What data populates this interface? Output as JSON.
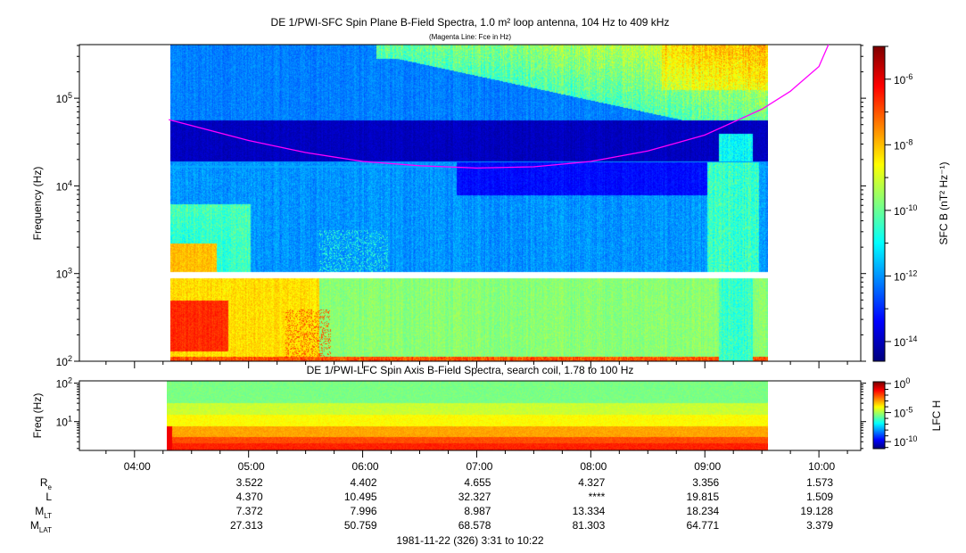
{
  "chart_data": [
    {
      "type": "heatmap",
      "title": "DE 1/PWI-SFC  Spin Plane B-Field Spectra, 1.0 m² loop antenna, 104 Hz to 409 kHz",
      "subtitle": "(Magenta Line: Fce in Hz)",
      "ylabel": "Frequency (Hz)",
      "yscale": "log",
      "ylim": [
        100,
        409000
      ],
      "yticks": [
        {
          "base": "10",
          "exp": "2"
        },
        {
          "base": "10",
          "exp": "3"
        },
        {
          "base": "10",
          "exp": "4"
        },
        {
          "base": "10",
          "exp": "5"
        }
      ],
      "ytick_values": [
        100,
        1000,
        10000,
        100000
      ],
      "xlim": [
        "03:31",
        "10:22"
      ],
      "data_time_range": [
        "04:18",
        "09:32"
      ],
      "data_gap_hz": [
        900,
        1050
      ],
      "colorbar": {
        "label": "SFC B (nT² Hz⁻¹)",
        "scale": "log",
        "range_exp": [
          -14.6,
          -5.0
        ],
        "ticks": [
          {
            "base": "10",
            "exp": "-6"
          },
          {
            "base": "10",
            "exp": "-8"
          },
          {
            "base": "10",
            "exp": "-10"
          },
          {
            "base": "10",
            "exp": "-12"
          },
          {
            "base": "10",
            "exp": "-14"
          }
        ],
        "tick_exps": [
          -6,
          -8,
          -10,
          -12,
          -14
        ],
        "colormap": "jet"
      },
      "fce_line": {
        "color": "#ff00ff",
        "times": [
          "04:18",
          "05:00",
          "05:30",
          "06:00",
          "06:30",
          "07:00",
          "07:30",
          "08:00",
          "08:30",
          "09:00",
          "09:30",
          "09:45",
          "10:00",
          "10:05"
        ],
        "hz": [
          57000,
          33000,
          24000,
          19000,
          17000,
          16000,
          16500,
          19000,
          25000,
          38000,
          75000,
          120000,
          230000,
          409000
        ]
      }
    },
    {
      "type": "heatmap",
      "title": "DE 1/PWI-LFC  Spin Axis B-Field Spectra, search coil, 1.78 to 100 Hz",
      "ylabel": "Freq (Hz)",
      "yscale": "log",
      "ylim": [
        1.78,
        100
      ],
      "yticks": [
        {
          "base": "10",
          "exp": "2"
        },
        {
          "base": "10",
          "exp": "1"
        }
      ],
      "ytick_values": [
        100,
        10
      ],
      "data_time_range": [
        "04:16",
        "09:32"
      ],
      "colorbar": {
        "label": "LFC H",
        "scale": "log",
        "range_exp": [
          -11.2,
          0.3
        ],
        "ticks": [
          {
            "base": "10",
            "exp": "0"
          },
          {
            "base": "10",
            "exp": "-5"
          },
          {
            "base": "10",
            "exp": "-10"
          }
        ],
        "tick_exps": [
          0,
          -5,
          -10
        ],
        "colormap": "jet"
      }
    }
  ],
  "time_axis": {
    "ticks": [
      "04:00",
      "05:00",
      "06:00",
      "07:00",
      "08:00",
      "09:00",
      "10:00"
    ],
    "minor_interval_min": 15
  },
  "ephemeris": {
    "rows": [
      {
        "label": "R",
        "sub": "e",
        "values": [
          "3.522",
          "4.402",
          "4.655",
          "4.327",
          "3.356",
          "1.573"
        ]
      },
      {
        "label": "L",
        "sub": "",
        "values": [
          "4.370",
          "10.495",
          "32.327",
          "****",
          "19.815",
          "1.509"
        ]
      },
      {
        "label": "M",
        "sub": "LT",
        "values": [
          "7.372",
          "7.996",
          "8.987",
          "13.334",
          "18.234",
          "19.128"
        ]
      },
      {
        "label": "M",
        "sub": "LAT",
        "values": [
          "27.313",
          "50.759",
          "68.578",
          "81.303",
          "64.771",
          "3.379"
        ]
      }
    ]
  },
  "footer": "1981-11-22 (326) 3:31 to 10:22"
}
